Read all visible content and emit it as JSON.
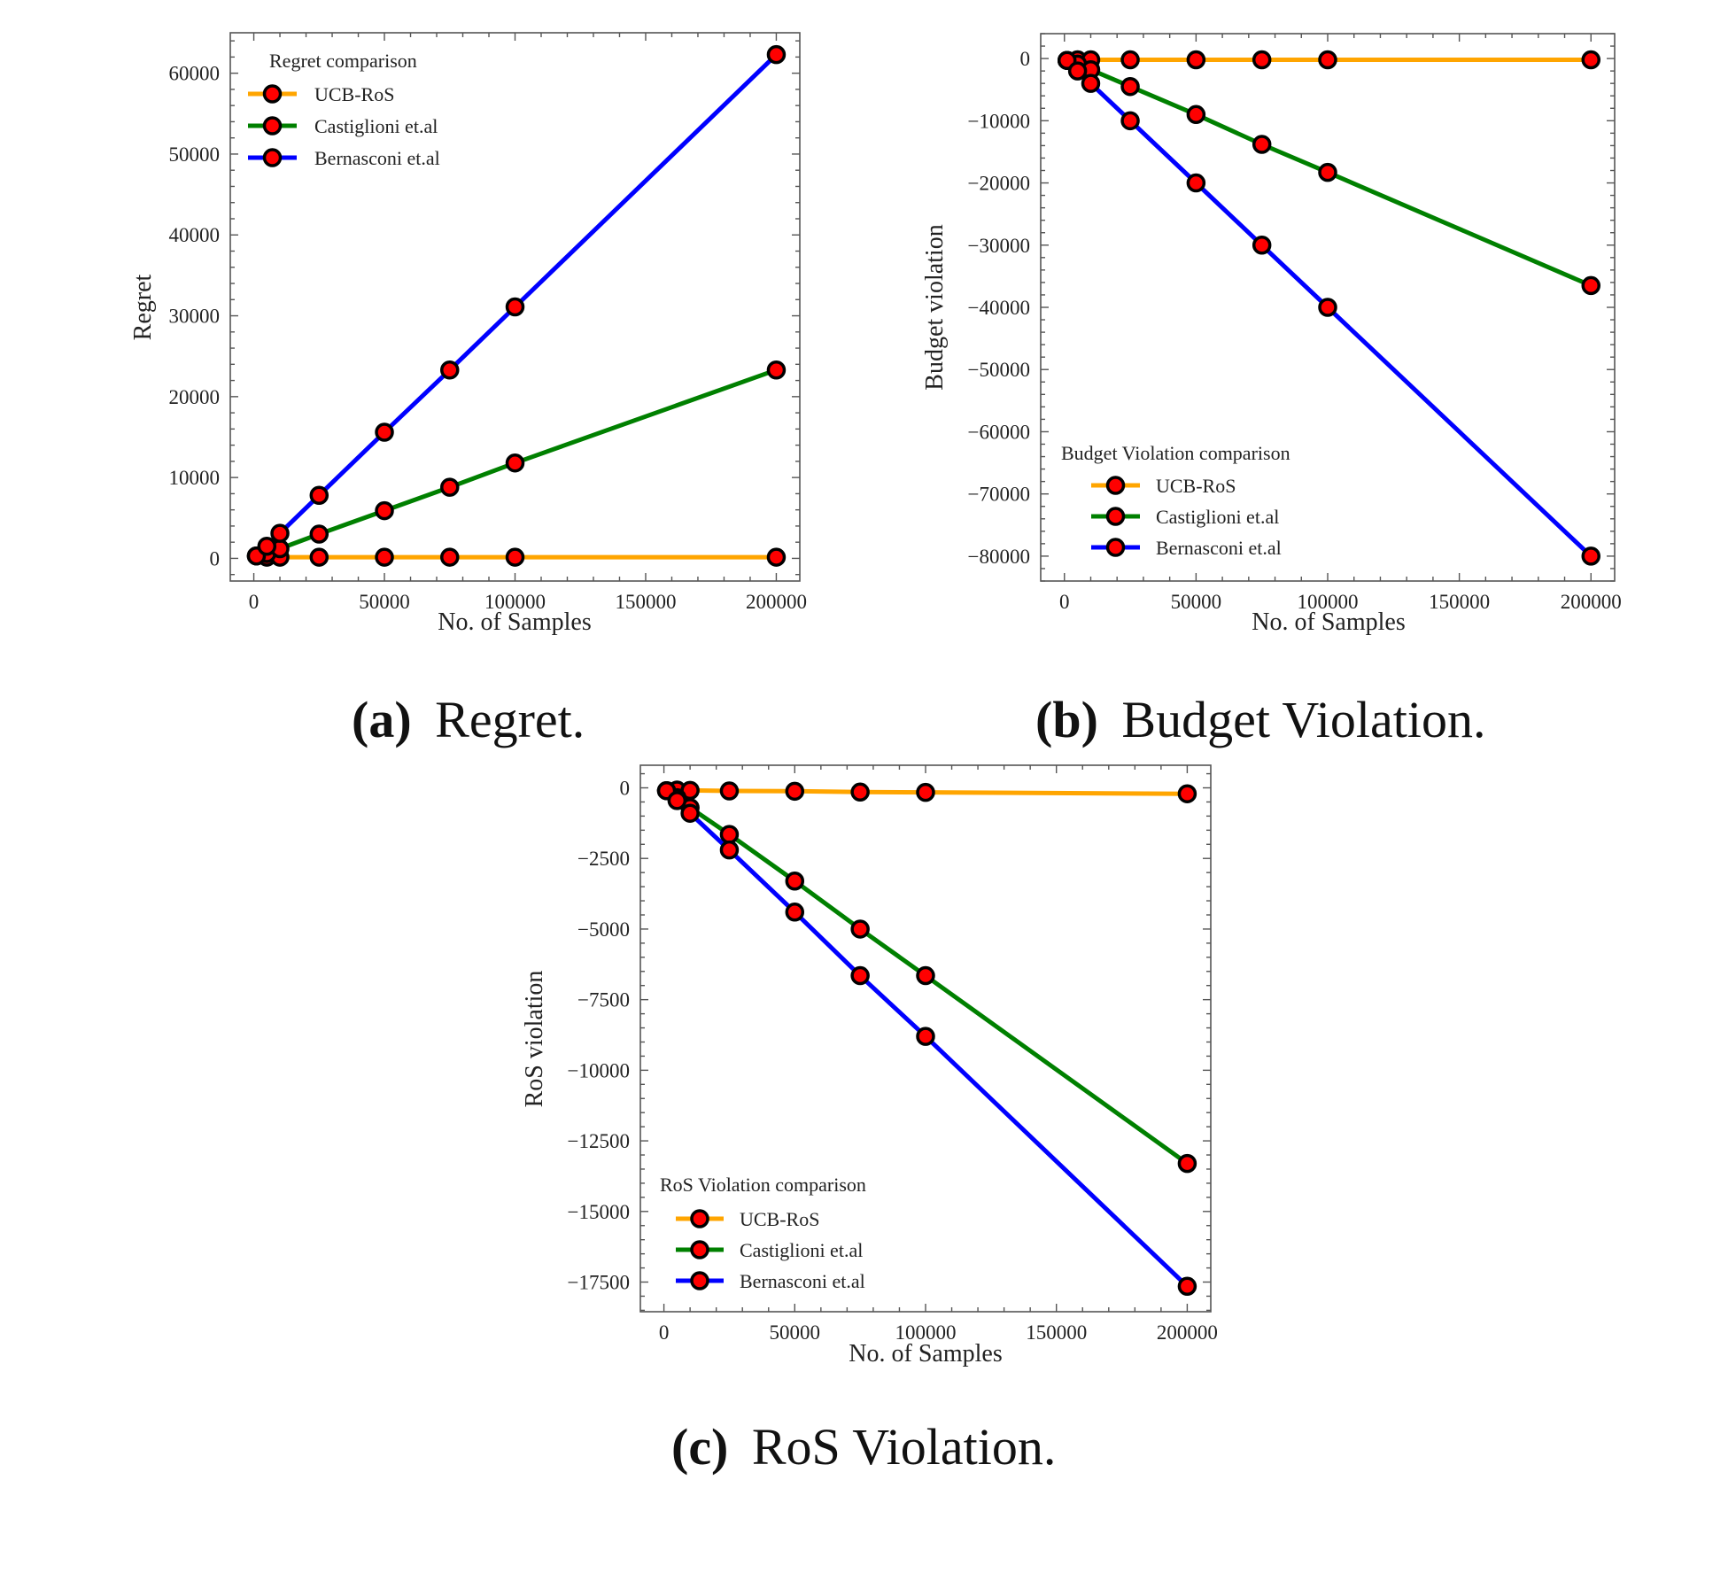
{
  "figure": {
    "captions": [
      {
        "letter": "(a)",
        "text": "Regret."
      },
      {
        "letter": "(b)",
        "text": "Budget Violation."
      },
      {
        "letter": "(c)",
        "text": "RoS Violation."
      }
    ]
  },
  "colors": {
    "ucb_ros": "#FFA500",
    "castiglioni": "#008000",
    "bernasconi": "#0000FF",
    "marker_fill": "#FF0000",
    "marker_edge": "#000000"
  },
  "chart_data": [
    {
      "id": "regret",
      "type": "line",
      "title": "",
      "xlabel": "No. of Samples",
      "ylabel": "Regret",
      "xlim": [
        -9000,
        209000
      ],
      "ylim": [
        -2800,
        65000
      ],
      "xticks": [
        0,
        50000,
        100000,
        150000,
        200000
      ],
      "xtick_labels": [
        "0",
        "50000",
        "100000",
        "150000",
        "200000"
      ],
      "x_minor_step": 10000,
      "yticks": [
        0,
        10000,
        20000,
        30000,
        40000,
        50000,
        60000
      ],
      "ytick_labels": [
        "0",
        "10000",
        "20000",
        "30000",
        "40000",
        "50000",
        "60000"
      ],
      "y_minor_step": 2000,
      "grid": false,
      "legend": {
        "title": "Regret comparison",
        "placement": "upper-left"
      },
      "x": [
        1000,
        5000,
        10000,
        25000,
        50000,
        75000,
        100000,
        200000
      ],
      "series": [
        {
          "name": "UCB-RoS",
          "color_key": "ucb_ros",
          "values": [
            300,
            150,
            150,
            150,
            150,
            150,
            150,
            150
          ]
        },
        {
          "name": "Castiglioni et.al",
          "color_key": "castiglioni",
          "values": [
            300,
            600,
            1200,
            3000,
            5900,
            8800,
            11800,
            23300
          ]
        },
        {
          "name": "Bernasconi et.al",
          "color_key": "bernasconi",
          "values": [
            300,
            1500,
            3100,
            7800,
            15600,
            23300,
            31100,
            62300
          ]
        }
      ]
    },
    {
      "id": "budget",
      "type": "line",
      "title": "",
      "xlabel": "No. of Samples",
      "ylabel": "Budget violation",
      "xlim": [
        -9000,
        209000
      ],
      "ylim": [
        -84000,
        4000
      ],
      "xticks": [
        0,
        50000,
        100000,
        150000,
        200000
      ],
      "xtick_labels": [
        "0",
        "50000",
        "100000",
        "150000",
        "200000"
      ],
      "x_minor_step": 10000,
      "yticks": [
        0,
        -10000,
        -20000,
        -30000,
        -40000,
        -50000,
        -60000,
        -70000,
        -80000
      ],
      "ytick_labels": [
        "0",
        "−10000",
        "−20000",
        "−30000",
        "−40000",
        "−50000",
        "−60000",
        "−70000",
        "−80000"
      ],
      "y_minor_step": 2000,
      "grid": false,
      "legend": {
        "title": "Budget Violation comparison",
        "placement": "lower-left"
      },
      "x": [
        1000,
        5000,
        10000,
        25000,
        50000,
        75000,
        100000,
        200000
      ],
      "series": [
        {
          "name": "UCB-RoS",
          "color_key": "ucb_ros",
          "values": [
            -300,
            -200,
            -200,
            -200,
            -200,
            -200,
            -200,
            -200
          ]
        },
        {
          "name": "Castiglioni et.al",
          "color_key": "castiglioni",
          "values": [
            -300,
            -900,
            -1800,
            -4500,
            -9000,
            -13800,
            -18300,
            -36500
          ]
        },
        {
          "name": "Bernasconi et.al",
          "color_key": "bernasconi",
          "values": [
            -300,
            -2000,
            -4000,
            -10000,
            -20000,
            -30000,
            -40000,
            -80000
          ]
        }
      ]
    },
    {
      "id": "ros",
      "type": "line",
      "title": "",
      "xlabel": "No. of Samples",
      "ylabel": "RoS violation",
      "xlim": [
        -9000,
        209000
      ],
      "ylim": [
        -18550,
        800
      ],
      "xticks": [
        0,
        50000,
        100000,
        150000,
        200000
      ],
      "xtick_labels": [
        "0",
        "50000",
        "100000",
        "150000",
        "200000"
      ],
      "x_minor_step": 10000,
      "yticks": [
        0,
        -2500,
        -5000,
        -7500,
        -10000,
        -12500,
        -15000,
        -17500
      ],
      "ytick_labels": [
        "0",
        "−2500",
        "−5000",
        "−7500",
        "−10000",
        "−12500",
        "−15000",
        "−17500"
      ],
      "y_minor_step": 500,
      "grid": false,
      "legend": {
        "title": "RoS Violation comparison",
        "placement": "lower-left"
      },
      "x": [
        1000,
        5000,
        10000,
        25000,
        50000,
        75000,
        100000,
        200000
      ],
      "series": [
        {
          "name": "UCB-RoS",
          "color_key": "ucb_ros",
          "values": [
            -100,
            -80,
            -90,
            -110,
            -120,
            -150,
            -160,
            -210
          ]
        },
        {
          "name": "Castiglioni et.al",
          "color_key": "castiglioni",
          "values": [
            -100,
            -350,
            -700,
            -1650,
            -3300,
            -5000,
            -6650,
            -13300
          ]
        },
        {
          "name": "Bernasconi et.al",
          "color_key": "bernasconi",
          "values": [
            -100,
            -450,
            -900,
            -2200,
            -4400,
            -6650,
            -8800,
            -17650
          ]
        }
      ]
    }
  ]
}
